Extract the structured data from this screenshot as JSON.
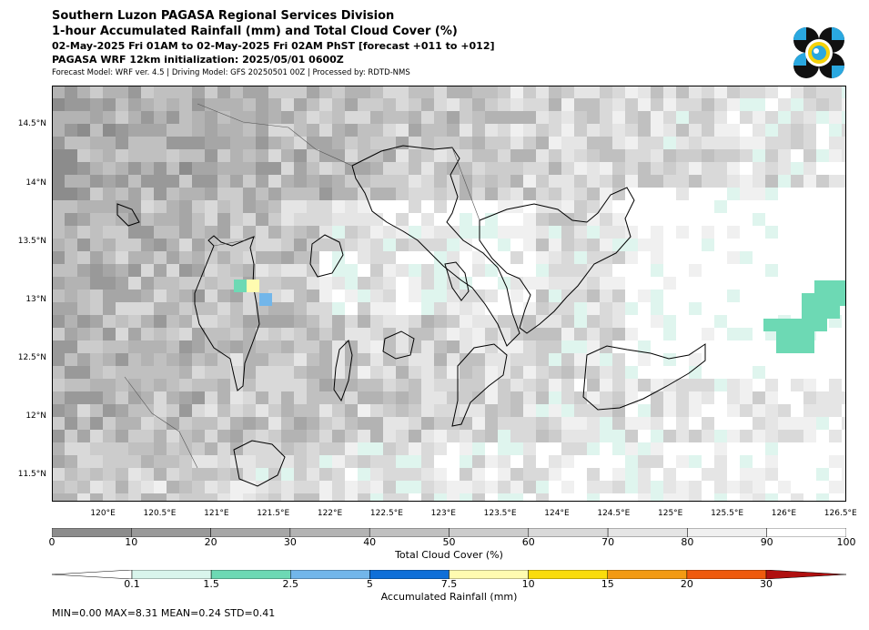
{
  "header": {
    "title": "Southern Luzon PAGASA Regional Services Division",
    "subtitle": "1-hour Accumulated Rainfall (mm) and Total Cloud Cover (%)",
    "valid_time": "02-May-2025 Fri 01AM to 02-May-2025 Fri 02AM PhST [forecast +011 to +012]",
    "init": "PAGASA WRF 12km initialization: 2025/05/01 0600Z",
    "models": "Forecast Model: WRF ver. 4.5 | Driving Model: GFS 20250501 00Z | Processed by: RDTD-NMS"
  },
  "logo": {
    "name": "pagasa-logo",
    "colors": [
      "#111111",
      "#2aa8e0",
      "#f5d20a"
    ]
  },
  "map": {
    "lat_labels": [
      "14.5°N",
      "14°N",
      "13.5°N",
      "13°N",
      "12.5°N",
      "12°N",
      "11.5°N"
    ],
    "lat_values": [
      14.5,
      14.0,
      13.5,
      13.0,
      12.5,
      12.0,
      11.5
    ],
    "lon_labels": [
      "120°E",
      "120.5°E",
      "121°E",
      "121.5°E",
      "122°E",
      "122.5°E",
      "123°E",
      "123.5°E",
      "124°E",
      "124.5°E",
      "125°E",
      "125.5°E",
      "126°E",
      "126.5°E"
    ],
    "lon_values": [
      120.0,
      120.5,
      121.0,
      121.5,
      122.0,
      122.5,
      123.0,
      123.5,
      124.0,
      124.5,
      125.0,
      125.5,
      126.0,
      126.5
    ],
    "lon_range": [
      119.55,
      126.55
    ],
    "lat_range": [
      11.27,
      14.83
    ]
  },
  "cloud_cover": {
    "title": "Total Cloud Cover (%)",
    "ticks": [
      "0",
      "10",
      "20",
      "30",
      "40",
      "50",
      "60",
      "70",
      "80",
      "90",
      "100"
    ],
    "colors": [
      "#8c8c8c",
      "#999999",
      "#a6a6a6",
      "#b3b3b3",
      "#c0c0c0",
      "#cccccc",
      "#d9d9d9",
      "#e5e5e5",
      "#f0f0f0",
      "#ffffff"
    ]
  },
  "rainfall": {
    "title": "Accumulated Rainfall (mm)",
    "ticks": [
      "0.1",
      "1.5",
      "2.5",
      "5",
      "7.5",
      "10",
      "15",
      "20",
      "30"
    ],
    "under_color": "#ffffff",
    "over_color": "#b01010",
    "colors": [
      "#d9f5ec",
      "#6dd9b4",
      "#72b6ea",
      "#0f6fd8",
      "#fffbb0",
      "#fadc0c",
      "#f39a13",
      "#ef5a0d"
    ]
  },
  "stats": "MIN=0.00   MAX=8.31   MEAN=0.24   STD=0.41"
}
